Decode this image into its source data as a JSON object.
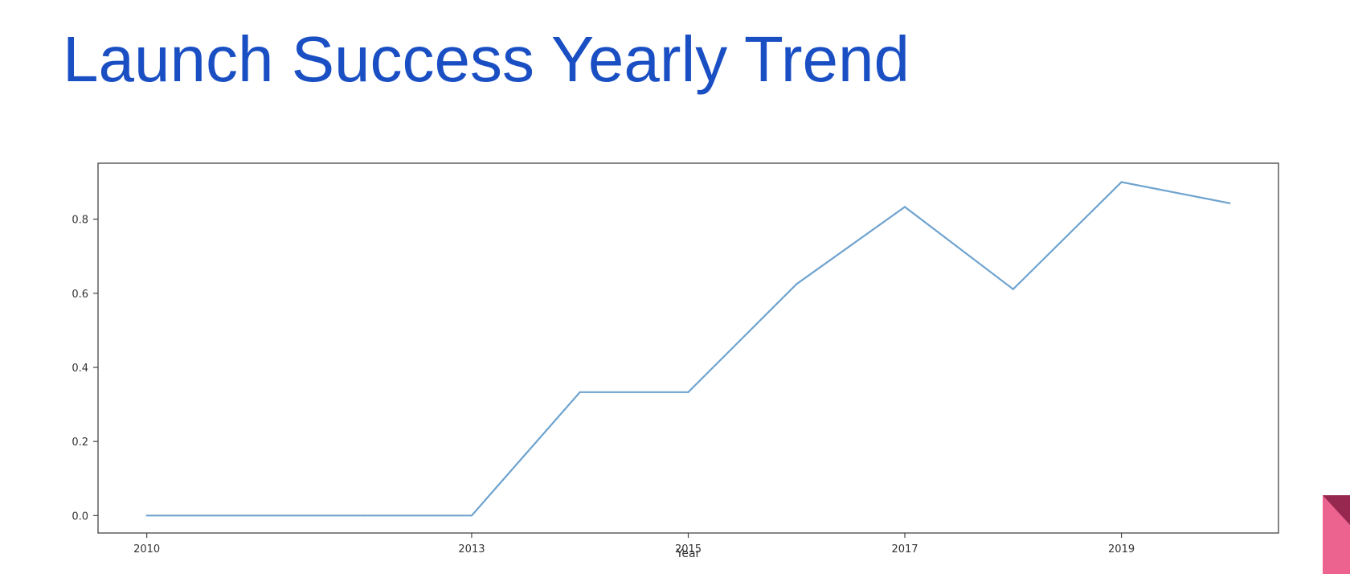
{
  "slide": {
    "title": "Launch Success Yearly Trend"
  },
  "colors": {
    "title": "#1a4fc4",
    "line": "#6ea3cf",
    "frame": "#444444",
    "corner_accent": "#ec6390",
    "corner_fold": "#96284f"
  },
  "chart_data": {
    "type": "line",
    "title": "",
    "xlabel": "Year",
    "ylabel": "",
    "x": [
      2010,
      2012,
      2013,
      2014,
      2015,
      2016,
      2017,
      2018,
      2019,
      2020
    ],
    "series": [
      {
        "values": [
          0.0,
          0.0,
          0.0,
          0.333,
          0.333,
          0.625,
          0.833,
          0.611,
          0.9,
          0.843
        ]
      }
    ],
    "xlim": [
      2009.55,
      2020.45
    ],
    "ylim": [
      -0.047,
      0.951
    ],
    "x_ticks": [
      {
        "value": 2010,
        "label": "2010"
      },
      {
        "value": 2013,
        "label": "2013"
      },
      {
        "value": 2015,
        "label": "2015"
      },
      {
        "value": 2017,
        "label": "2017"
      },
      {
        "value": 2019,
        "label": "2019"
      }
    ],
    "y_ticks": [
      {
        "value": 0.0,
        "label": "0.0"
      },
      {
        "value": 0.2,
        "label": "0.2"
      },
      {
        "value": 0.4,
        "label": "0.4"
      },
      {
        "value": 0.6,
        "label": "0.6"
      },
      {
        "value": 0.8,
        "label": "0.8"
      }
    ],
    "grid": false,
    "legend": "none"
  }
}
